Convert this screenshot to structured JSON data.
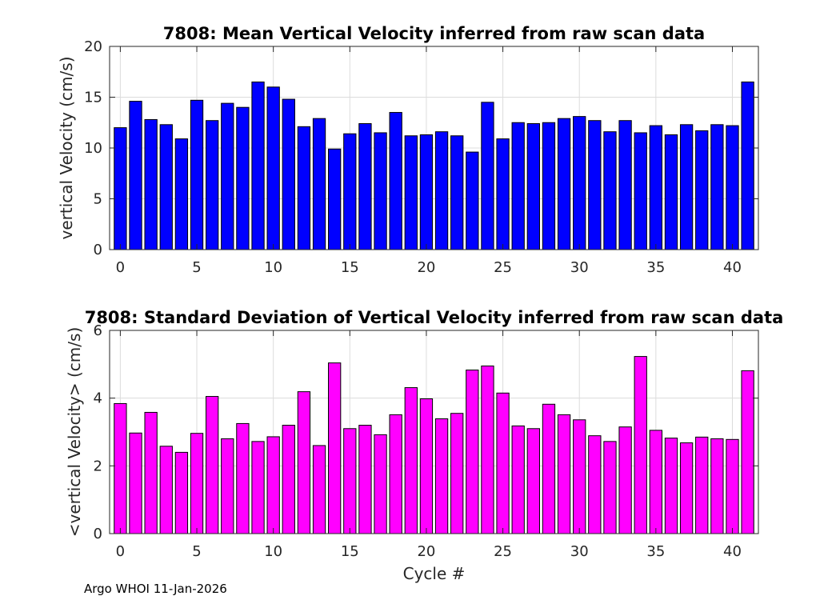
{
  "chart_data": [
    {
      "type": "bar",
      "title": "7808: Mean Vertical Velocity inferred from raw scan data",
      "xlabel": "",
      "ylabel": "vertical Velocity (cm/s)",
      "xlim": [
        -0.7,
        41.7
      ],
      "ylim": [
        0,
        20
      ],
      "xticks": [
        0,
        5,
        10,
        15,
        20,
        25,
        30,
        35,
        40
      ],
      "yticks": [
        0,
        5,
        10,
        15,
        20
      ],
      "grid": true,
      "color": "#0000ff",
      "x": [
        0,
        1,
        2,
        3,
        4,
        5,
        6,
        7,
        8,
        9,
        10,
        11,
        12,
        13,
        14,
        15,
        16,
        17,
        18,
        19,
        20,
        21,
        22,
        23,
        24,
        25,
        26,
        27,
        28,
        29,
        30,
        31,
        32,
        33,
        34,
        35,
        36,
        37,
        38,
        39,
        40,
        41
      ],
      "values": [
        12.0,
        14.6,
        12.8,
        12.3,
        10.9,
        14.7,
        12.7,
        14.4,
        14.0,
        16.5,
        16.0,
        14.8,
        12.1,
        12.9,
        9.9,
        11.4,
        12.4,
        11.5,
        13.5,
        11.2,
        11.3,
        11.6,
        11.2,
        9.6,
        14.5,
        10.9,
        12.5,
        12.4,
        12.5,
        12.9,
        13.1,
        12.7,
        11.6,
        12.7,
        11.5,
        12.2,
        11.3,
        12.3,
        11.7,
        12.3,
        12.2,
        16.5
      ]
    },
    {
      "type": "bar",
      "title": "7808: Standard Deviation of Vertical Velocity inferred from raw scan data",
      "xlabel": "Cycle #",
      "ylabel": "<vertical Velocity> (cm/s)",
      "xlim": [
        -0.7,
        41.7
      ],
      "ylim": [
        0,
        6
      ],
      "xticks": [
        0,
        5,
        10,
        15,
        20,
        25,
        30,
        35,
        40
      ],
      "yticks": [
        0,
        2,
        4,
        6
      ],
      "grid": true,
      "color": "#ff00ff",
      "x": [
        0,
        1,
        2,
        3,
        4,
        5,
        6,
        7,
        8,
        9,
        10,
        11,
        12,
        13,
        14,
        15,
        16,
        17,
        18,
        19,
        20,
        21,
        22,
        23,
        24,
        25,
        26,
        27,
        28,
        29,
        30,
        31,
        32,
        33,
        34,
        35,
        36,
        37,
        38,
        39,
        40,
        41
      ],
      "values": [
        3.84,
        2.97,
        3.58,
        2.58,
        2.4,
        2.96,
        4.05,
        2.8,
        3.25,
        2.72,
        2.86,
        3.2,
        4.19,
        2.6,
        5.04,
        3.1,
        3.2,
        2.92,
        3.51,
        4.31,
        3.98,
        3.39,
        3.55,
        4.83,
        4.95,
        4.15,
        3.18,
        3.1,
        3.82,
        3.51,
        3.36,
        2.89,
        2.72,
        3.15,
        5.23,
        3.05,
        2.82,
        2.68,
        2.85,
        2.8,
        2.78,
        4.81
      ]
    }
  ],
  "footer": "Argo WHOI 11-Jan-2026"
}
